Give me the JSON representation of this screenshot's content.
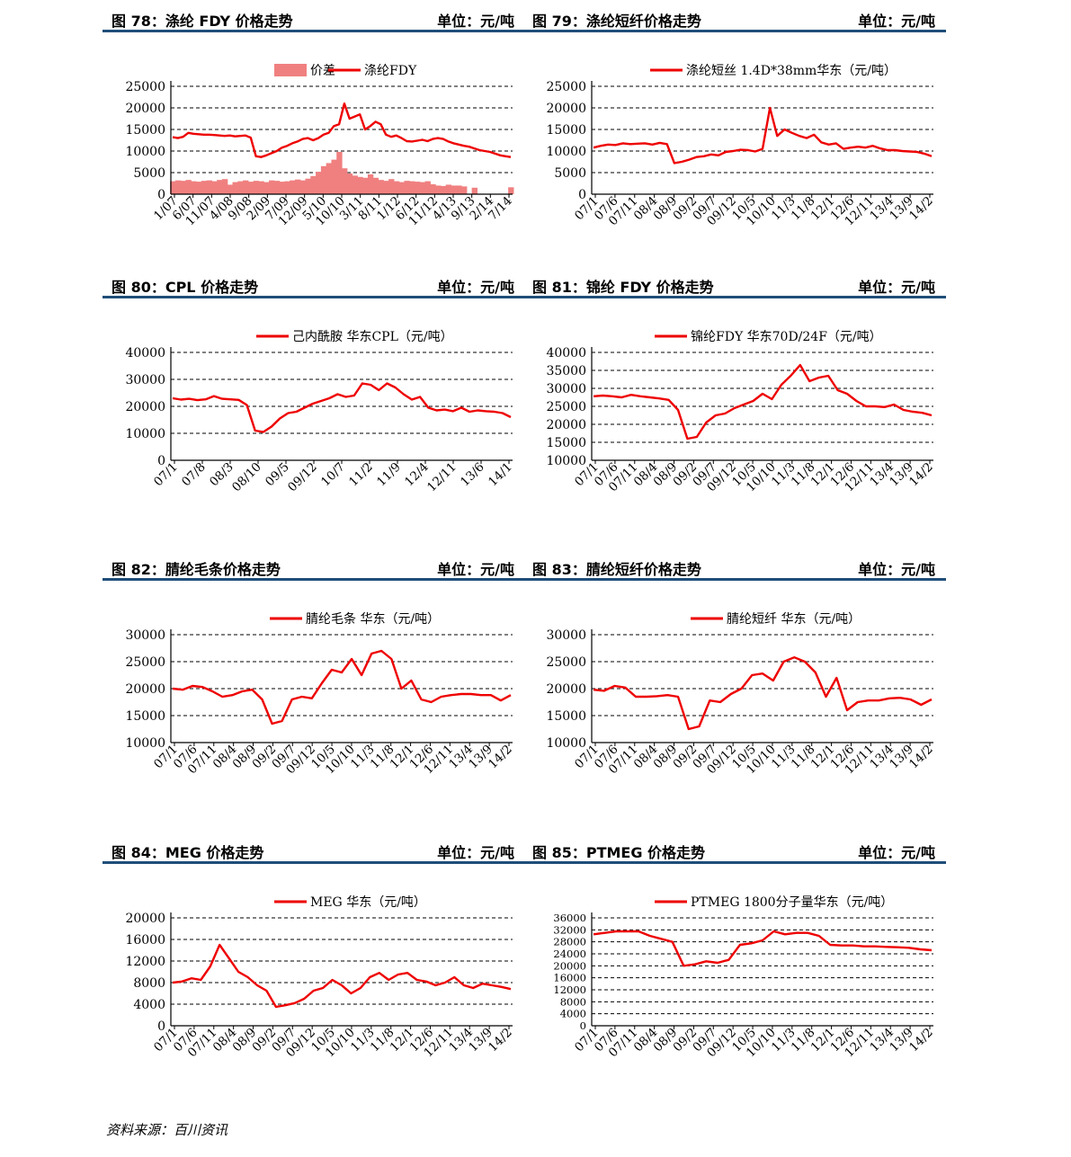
{
  "source": "资料来源：百川资讯",
  "panels": [
    {
      "title": "图 78：涤纶 FDY 价格走势",
      "unit": "单位：元/吨",
      "chart_data": {
        "type": "line",
        "title": "",
        "xlabel": "",
        "ylabel": "",
        "ylim": [
          0,
          25000
        ],
        "yticks": [
          "0",
          "5000",
          "10000",
          "15000",
          "20000",
          "25000"
        ],
        "grid": true,
        "legend_placement": "top",
        "x_tick_labels": [
          "1/07",
          "6/07",
          "11/07",
          "4/08",
          "9/08",
          "2/09",
          "7/09",
          "12/09",
          "5/10",
          "10/10",
          "3/11",
          "8/11",
          "1/12",
          "6/12",
          "11/12",
          "4/13",
          "9/13",
          "2/14",
          "7/14"
        ],
        "series": [
          {
            "name": "价差",
            "kind": "area",
            "color": "#f08080",
            "values": [
              3000,
              3200,
              3100,
              3300,
              3000,
              2900,
              3100,
              3200,
              3000,
              3300,
              3500,
              2200,
              2800,
              3000,
              3200,
              2900,
              3100,
              3000,
              2800,
              3200,
              3100,
              2900,
              3000,
              3200,
              3400,
              3200,
              3600,
              4200,
              5200,
              6500,
              7200,
              8000,
              9800,
              6000,
              4800,
              4300,
              4000,
              3800,
              4600,
              3800,
              3300,
              3100,
              3500,
              3000,
              2800,
              3100,
              3000,
              2900,
              2800,
              3000,
              2300,
              2000,
              1900,
              2200,
              2000,
              2000,
              1800,
              null,
              1500,
              null,
              null,
              null,
              null,
              null,
              null,
              1600
            ]
          },
          {
            "name": "涤纶FDY",
            "kind": "line",
            "color": "#ee0000",
            "values": [
              13200,
              13000,
              13300,
              14200,
              14000,
              13900,
              13800,
              13800,
              13700,
              13600,
              13500,
              13600,
              13400,
              13500,
              13600,
              13100,
              8800,
              8600,
              9000,
              9500,
              10000,
              10800,
              11200,
              11800,
              12200,
              12800,
              13000,
              12500,
              13000,
              13800,
              14200,
              15800,
              16200,
              21000,
              17500,
              18000,
              18500,
              15000,
              15800,
              16800,
              16200,
              13800,
              13300,
              13600,
              13000,
              12300,
              12200,
              12400,
              12600,
              12300,
              12800,
              13000,
              12800,
              12200,
              11800,
              11500,
              11200,
              11000,
              10600,
              10200,
              10000,
              9800,
              9400,
              9000,
              8800,
              8600
            ]
          }
        ]
      }
    },
    {
      "title": "图 79：涤纶短纤价格走势",
      "unit": "单位：元/吨",
      "chart_data": {
        "type": "line",
        "title": "",
        "xlabel": "",
        "ylabel": "",
        "ylim": [
          0,
          25000
        ],
        "yticks": [
          "0",
          "5000",
          "10000",
          "15000",
          "20000",
          "25000"
        ],
        "grid": true,
        "legend_placement": "top",
        "x_tick_labels": [
          "07/1",
          "07/6",
          "07/11",
          "08/4",
          "08/9",
          "09/2",
          "09/7",
          "09/12",
          "10/5",
          "10/10",
          "11/3",
          "11/8",
          "12/1",
          "12/6",
          "12/11",
          "13/4",
          "13/9",
          "14/2"
        ],
        "series": [
          {
            "name": "涤纶短丝 1.4D*38mm华东（元/吨）",
            "kind": "line",
            "color": "#ee0000",
            "values": [
              10800,
              11200,
              11500,
              11400,
              11800,
              11600,
              11700,
              11800,
              11500,
              11900,
              11600,
              7200,
              7500,
              8000,
              8600,
              8800,
              9200,
              9000,
              9800,
              10000,
              10300,
              10200,
              9900,
              10500,
              20000,
              13500,
              15000,
              14200,
              13500,
              13000,
              13800,
              12000,
              11500,
              11800,
              10500,
              10800,
              11000,
              10800,
              11200,
              10600,
              10200,
              10200,
              10000,
              9900,
              9800,
              9400,
              8800
            ]
          }
        ]
      }
    },
    {
      "title": "图 80：CPL 价格走势",
      "unit": "单位：元/吨",
      "chart_data": {
        "type": "line",
        "title": "",
        "xlabel": "",
        "ylabel": "",
        "ylim": [
          0,
          40000
        ],
        "yticks": [
          "0",
          "10000",
          "20000",
          "30000",
          "40000"
        ],
        "grid": true,
        "legend_placement": "top",
        "x_tick_labels": [
          "07/1",
          "07/8",
          "08/3",
          "08/10",
          "09/5",
          "09/12",
          "10/7",
          "11/2",
          "11/9",
          "12/4",
          "12/11",
          "13/6",
          "14/1"
        ],
        "series": [
          {
            "name": "己内酰胺 华东CPL（元/吨）",
            "kind": "line",
            "color": "#ee0000",
            "values": [
              23000,
              22500,
              22800,
              22300,
              22600,
              23800,
              22800,
              22600,
              22400,
              20500,
              11000,
              10500,
              12500,
              15500,
              17500,
              18000,
              19500,
              21000,
              22000,
              23000,
              24500,
              23500,
              24000,
              28500,
              28000,
              26000,
              28500,
              27000,
              24500,
              22500,
              23500,
              19500,
              18500,
              18800,
              18200,
              19500,
              18000,
              18500,
              18200,
              18000,
              17500,
              16000
            ]
          }
        ]
      }
    },
    {
      "title": "图 81：锦纶 FDY 价格走势",
      "unit": "单位：元/吨",
      "chart_data": {
        "type": "line",
        "title": "",
        "xlabel": "",
        "ylabel": "",
        "ylim": [
          10000,
          40000
        ],
        "yticks": [
          "10000",
          "15000",
          "20000",
          "25000",
          "30000",
          "35000",
          "40000"
        ],
        "grid": true,
        "legend_placement": "top",
        "x_tick_labels": [
          "07/1",
          "07/6",
          "07/11",
          "08/4",
          "08/9",
          "09/2",
          "09/7",
          "09/12",
          "10/5",
          "10/10",
          "11/3",
          "11/8",
          "12/1",
          "12/6",
          "12/11",
          "13/4",
          "13/9",
          "14/2"
        ],
        "series": [
          {
            "name": "锦纶FDY 华东70D/24F（元/吨）",
            "kind": "line",
            "color": "#ee0000",
            "values": [
              27800,
              28000,
              27800,
              27500,
              28200,
              27800,
              27500,
              27200,
              26800,
              24000,
              16000,
              16500,
              20500,
              22500,
              23000,
              24500,
              25500,
              26500,
              28500,
              27000,
              31000,
              33500,
              36500,
              32000,
              33000,
              33500,
              29500,
              28500,
              26500,
              25000,
              25000,
              24800,
              25500,
              24000,
              23500,
              23200,
              22500
            ]
          }
        ]
      }
    },
    {
      "title": "图 82：腈纶毛条价格走势",
      "unit": "单位：元/吨",
      "chart_data": {
        "type": "line",
        "title": "",
        "xlabel": "",
        "ylabel": "",
        "ylim": [
          10000,
          30000
        ],
        "yticks": [
          "10000",
          "15000",
          "20000",
          "25000",
          "30000"
        ],
        "grid": true,
        "legend_placement": "top",
        "x_tick_labels": [
          "07/1",
          "07/6",
          "07/11",
          "08/4",
          "08/9",
          "09/2",
          "09/7",
          "09/12",
          "10/5",
          "10/10",
          "11/3",
          "11/8",
          "12/1",
          "12/6",
          "12/11",
          "13/4",
          "13/9",
          "14/2"
        ],
        "series": [
          {
            "name": "腈纶毛条 华东（元/吨）",
            "kind": "line",
            "color": "#ee0000",
            "values": [
              20000,
              19800,
              20500,
              20300,
              19500,
              18500,
              18800,
              19500,
              19800,
              18000,
              13500,
              14000,
              18000,
              18500,
              18200,
              21000,
              23500,
              23000,
              25500,
              22500,
              26500,
              27000,
              25500,
              20000,
              21500,
              18000,
              17500,
              18500,
              18800,
              19000,
              19000,
              18800,
              18800,
              17800,
              18800
            ]
          }
        ]
      }
    },
    {
      "title": "图 83：腈纶短纤价格走势",
      "unit": "单位：元/吨",
      "chart_data": {
        "type": "line",
        "title": "",
        "xlabel": "",
        "ylabel": "",
        "ylim": [
          10000,
          30000
        ],
        "yticks": [
          "10000",
          "15000",
          "20000",
          "25000",
          "30000"
        ],
        "grid": true,
        "legend_placement": "top",
        "x_tick_labels": [
          "07/1",
          "07/6",
          "07/11",
          "08/4",
          "08/9",
          "09/2",
          "09/7",
          "09/12",
          "10/5",
          "10/10",
          "11/3",
          "11/8",
          "12/1",
          "12/6",
          "12/11",
          "13/4",
          "13/9",
          "14/2"
        ],
        "series": [
          {
            "name": "腈纶短纤 华东（元/吨）",
            "kind": "line",
            "color": "#ee0000",
            "values": [
              19800,
              19600,
              20500,
              20200,
              18500,
              18500,
              18600,
              18800,
              18500,
              12500,
              13000,
              17800,
              17500,
              19000,
              20000,
              22500,
              22800,
              21500,
              25000,
              25800,
              25000,
              23000,
              18500,
              22000,
              16000,
              17500,
              17800,
              17800,
              18200,
              18300,
              18000,
              17000,
              18000
            ]
          }
        ]
      }
    },
    {
      "title": "图 84：MEG 价格走势",
      "unit": "单位：元/吨",
      "chart_data": {
        "type": "line",
        "title": "",
        "xlabel": "",
        "ylabel": "",
        "ylim": [
          0,
          20000
        ],
        "yticks": [
          "0",
          "4000",
          "8000",
          "12000",
          "16000",
          "20000"
        ],
        "grid": true,
        "legend_placement": "top",
        "x_tick_labels": [
          "07/1",
          "07/6",
          "07/11",
          "08/4",
          "08/9",
          "09/2",
          "09/7",
          "09/12",
          "10/5",
          "10/10",
          "11/3",
          "11/8",
          "12/1",
          "12/6",
          "12/11",
          "13/4",
          "13/9",
          "14/2"
        ],
        "series": [
          {
            "name": "MEG 华东（元/吨）",
            "kind": "line",
            "color": "#ee0000",
            "values": [
              8000,
              8200,
              8800,
              8500,
              11000,
              15000,
              12500,
              10000,
              9000,
              7500,
              6500,
              3500,
              3800,
              4200,
              5000,
              6500,
              7000,
              8500,
              7500,
              6000,
              7000,
              9000,
              9800,
              8500,
              9500,
              9800,
              8500,
              8200,
              7500,
              8000,
              9000,
              7500,
              7000,
              7800,
              7500,
              7200,
              6800
            ]
          }
        ]
      }
    },
    {
      "title": "图 85：PTMEG 价格走势",
      "unit": "单位：元/吨",
      "chart_data": {
        "type": "line",
        "title": "",
        "xlabel": "",
        "ylabel": "",
        "ylim": [
          0,
          36000
        ],
        "yticks": [
          "0",
          "4000",
          "8000",
          "12000",
          "16000",
          "20000",
          "24000",
          "28000",
          "32000",
          "36000"
        ],
        "grid": true,
        "legend_placement": "top",
        "x_tick_labels": [
          "07/1",
          "07/6",
          "07/11",
          "08/4",
          "08/9",
          "09/2",
          "09/7",
          "09/12",
          "10/5",
          "10/10",
          "11/3",
          "11/8",
          "12/1",
          "12/6",
          "12/11",
          "13/4",
          "13/9",
          "14/2"
        ],
        "series": [
          {
            "name": "PTMEG 1800分子量华东（元/吨）",
            "kind": "line",
            "color": "#ee0000",
            "values": [
              30500,
              31000,
              31500,
              31500,
              31500,
              30000,
              29000,
              28000,
              20000,
              20500,
              21500,
              21000,
              22000,
              27000,
              27500,
              28500,
              31500,
              30500,
              31000,
              31000,
              30000,
              27000,
              26800,
              26800,
              26500,
              26500,
              26300,
              26200,
              26000,
              25500,
              25200
            ]
          }
        ]
      }
    }
  ]
}
